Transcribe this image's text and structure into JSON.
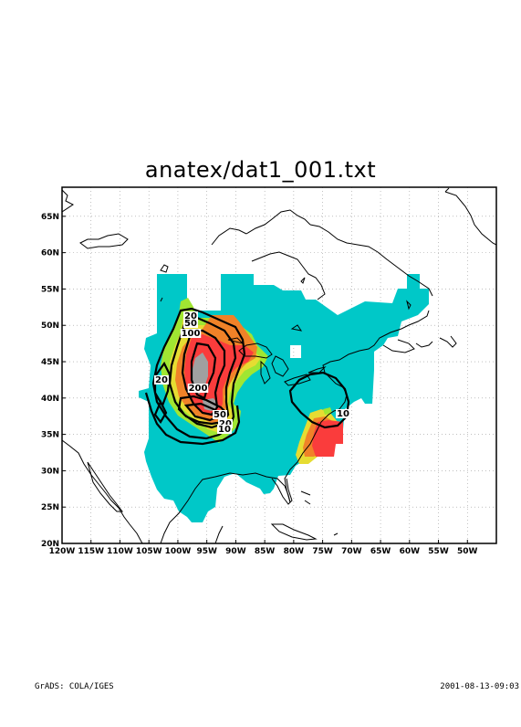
{
  "title": "anatex/dat1_001.txt",
  "footer": {
    "left": "GrADS: COLA/IGES",
    "right": "2001-08-13-09:03"
  },
  "map": {
    "lon_range": [
      -120,
      -45
    ],
    "lat_range": [
      20,
      69
    ],
    "grid": "dotted",
    "lon_ticks": [
      "120W",
      "115W",
      "110W",
      "105W",
      "100W",
      "95W",
      "90W",
      "85W",
      "80W",
      "75W",
      "70W",
      "65W",
      "60W",
      "55W",
      "50W"
    ],
    "lat_ticks": [
      "20N",
      "25N",
      "30N",
      "35N",
      "40N",
      "45N",
      "50N",
      "55N",
      "60N",
      "65N"
    ],
    "contour_labels": [
      "20",
      "50",
      "100",
      "200",
      "20",
      "50",
      "20",
      "10",
      "10"
    ],
    "shading_colors": [
      "#00c8c8",
      "#a0e632",
      "#e6dc32",
      "#f08228",
      "#fa3c3c",
      "#a0a0a0"
    ]
  }
}
